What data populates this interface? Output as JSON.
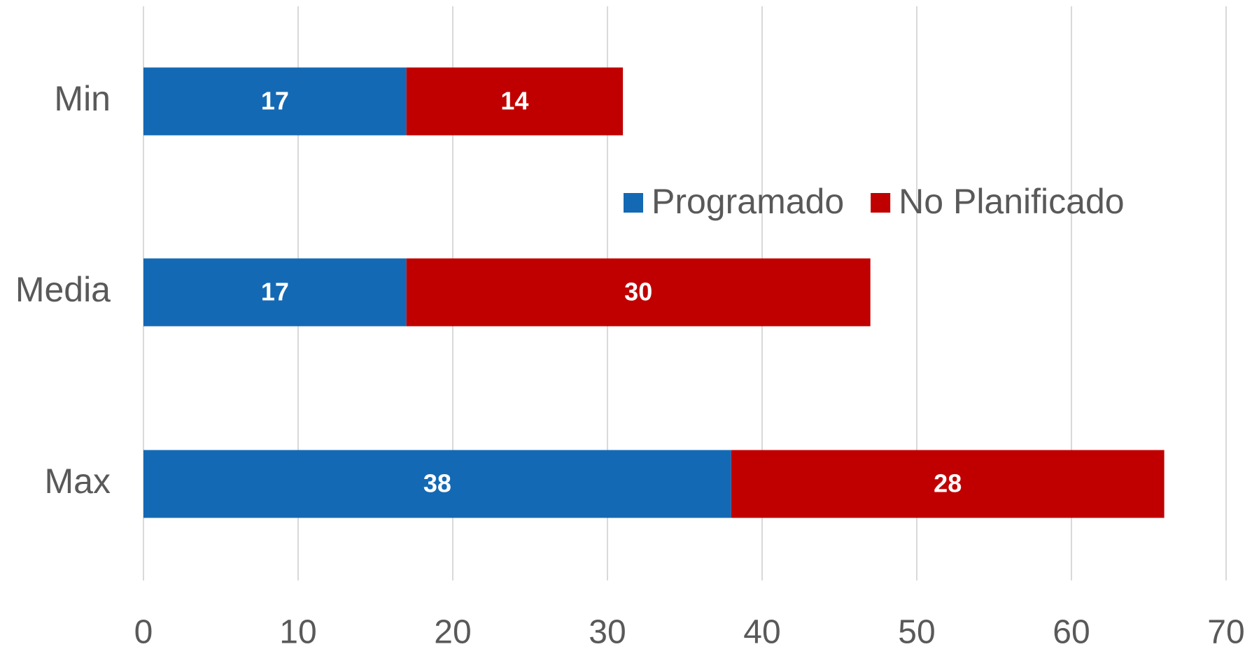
{
  "chart_data": {
    "type": "stacked_bar_horizontal",
    "categories": [
      "Min",
      "Media",
      "Max"
    ],
    "series": [
      {
        "name": "Programado",
        "color": "#1469b4",
        "values": [
          17,
          17,
          38
        ]
      },
      {
        "name": "No Planificado",
        "color": "#c00000",
        "values": [
          14,
          30,
          28
        ]
      }
    ],
    "xlim": [
      0,
      70
    ],
    "xticks": [
      0,
      10,
      20,
      30,
      40,
      50,
      60,
      70
    ],
    "grid": true,
    "legend": "upper right"
  }
}
